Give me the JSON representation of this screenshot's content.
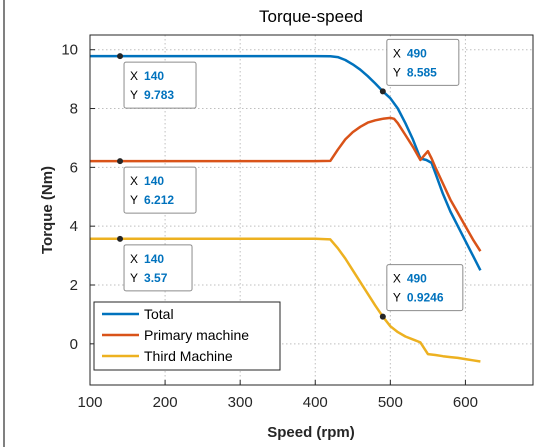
{
  "chart_data": {
    "type": "line",
    "title": "Torque-speed",
    "xlabel": "Speed (rpm)",
    "ylabel": "Torque (Nm)",
    "xlim": [
      100,
      690
    ],
    "ylim": [
      -1.4,
      10.5
    ],
    "xticks": [
      100,
      200,
      300,
      400,
      500,
      600
    ],
    "yticks": [
      0,
      2,
      4,
      6,
      8,
      10
    ],
    "grid": true,
    "legend_location": "bottom-left",
    "series": [
      {
        "name": "Total",
        "color": "#0072bd",
        "x": [
          100,
          140,
          200,
          300,
          400,
          420,
          430,
          440,
          450,
          460,
          470,
          480,
          490,
          500,
          510,
          520,
          530,
          540,
          548,
          555,
          560,
          570,
          580,
          590,
          600,
          610,
          620
        ],
        "y": [
          9.783,
          9.783,
          9.783,
          9.783,
          9.783,
          9.78,
          9.75,
          9.65,
          9.5,
          9.32,
          9.1,
          8.85,
          8.585,
          8.35,
          8.0,
          7.5,
          6.95,
          6.3,
          6.25,
          6.15,
          5.8,
          5.1,
          4.5,
          4.0,
          3.5,
          3.0,
          2.5
        ]
      },
      {
        "name": "Primary machine",
        "color": "#d95319",
        "x": [
          100,
          140,
          200,
          300,
          400,
          420,
          430,
          440,
          450,
          460,
          470,
          480,
          490,
          500,
          505,
          510,
          520,
          530,
          540,
          545,
          550,
          555,
          560,
          570,
          580,
          590,
          600,
          610,
          620
        ],
        "y": [
          6.212,
          6.212,
          6.212,
          6.212,
          6.212,
          6.22,
          6.6,
          6.95,
          7.2,
          7.38,
          7.52,
          7.6,
          7.65,
          7.68,
          7.65,
          7.5,
          7.1,
          6.7,
          6.25,
          6.4,
          6.55,
          6.3,
          6.0,
          5.45,
          4.9,
          4.45,
          4.0,
          3.55,
          3.15
        ]
      },
      {
        "name": "Third Machine",
        "color": "#edb120",
        "x": [
          100,
          140,
          200,
          300,
          400,
          420,
          430,
          440,
          450,
          460,
          470,
          480,
          490,
          500,
          510,
          520,
          530,
          540,
          550,
          560,
          570,
          580,
          590,
          600,
          610,
          620
        ],
        "y": [
          3.57,
          3.57,
          3.57,
          3.57,
          3.57,
          3.55,
          3.25,
          2.9,
          2.5,
          2.1,
          1.7,
          1.3,
          0.9246,
          0.6,
          0.4,
          0.25,
          0.15,
          0.05,
          -0.35,
          -0.38,
          -0.42,
          -0.45,
          -0.48,
          -0.52,
          -0.56,
          -0.6
        ]
      }
    ],
    "datatips": [
      {
        "x": 140,
        "y": 9.783,
        "x_label": "X",
        "y_label": "Y",
        "x_text": "140",
        "y_text": "9.783",
        "placement": "below-right"
      },
      {
        "x": 490,
        "y": 8.585,
        "x_label": "X",
        "y_label": "Y",
        "x_text": "490",
        "y_text": "8.585",
        "placement": "above-right"
      },
      {
        "x": 140,
        "y": 6.212,
        "x_label": "X",
        "y_label": "Y",
        "x_text": "140",
        "y_text": "6.212",
        "placement": "below-right"
      },
      {
        "x": 140,
        "y": 3.57,
        "x_label": "X",
        "y_label": "Y",
        "x_text": "140",
        "y_text": "3.57",
        "placement": "below-right"
      },
      {
        "x": 490,
        "y": 0.9246,
        "x_label": "X",
        "y_label": "Y",
        "x_text": "490",
        "y_text": "0.9246",
        "placement": "above-right"
      }
    ]
  }
}
